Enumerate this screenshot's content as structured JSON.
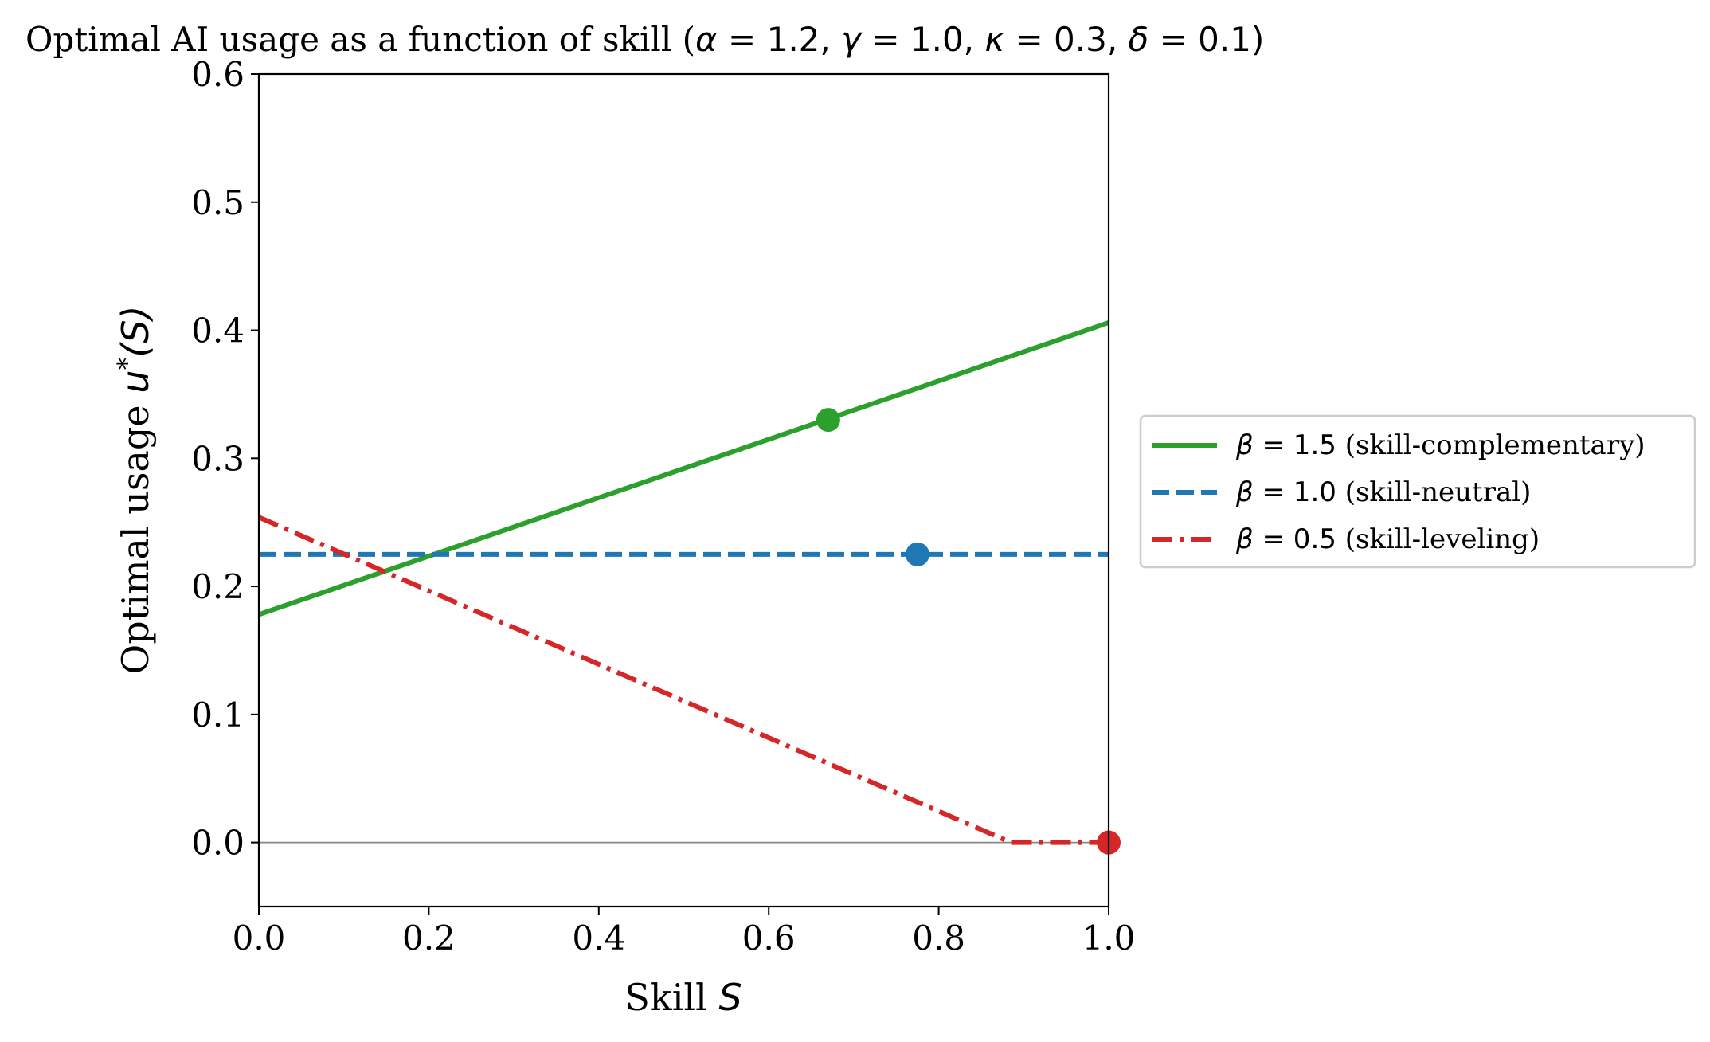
{
  "chart_data": {
    "type": "line",
    "title": {
      "prefix": "Optimal AI usage as a function of skill (",
      "params": [
        {
          "symbol": "α",
          "value": "1.2"
        },
        {
          "symbol": "γ",
          "value": "1.0"
        },
        {
          "symbol": "κ",
          "value": "0.3"
        },
        {
          "symbol": "δ",
          "value": "0.1"
        }
      ],
      "suffix": ")"
    },
    "xlabel": {
      "text": "Skill ",
      "symbol": "S"
    },
    "ylabel": {
      "text": "Optimal usage ",
      "symbol": "u",
      "sup": "*",
      "arg": "(S)"
    },
    "xlim": [
      0.0,
      1.0
    ],
    "ylim": [
      -0.05,
      0.6
    ],
    "xticks": [
      "0.0",
      "0.2",
      "0.4",
      "0.6",
      "0.8",
      "1.0"
    ],
    "yticks": [
      "0.0",
      "0.1",
      "0.2",
      "0.3",
      "0.4",
      "0.5",
      "0.6"
    ],
    "zero_line": true,
    "grid": false,
    "legend_position": "right, outside plot",
    "series": [
      {
        "name": {
          "symbol": "β",
          "value": "1.5",
          "desc": "(skill-complementary)"
        },
        "color": "#2ca02c",
        "style": "solid",
        "x": [
          0.0,
          1.0
        ],
        "y": [
          0.178,
          0.406
        ],
        "marker": {
          "x": 0.67,
          "y": 0.33
        }
      },
      {
        "name": {
          "symbol": "β",
          "value": "1.0",
          "desc": "(skill-neutral)"
        },
        "color": "#1f77b4",
        "style": "dashed",
        "x": [
          0.0,
          1.0
        ],
        "y": [
          0.225,
          0.225
        ],
        "marker": {
          "x": 0.775,
          "y": 0.225
        }
      },
      {
        "name": {
          "symbol": "β",
          "value": "0.5",
          "desc": "(skill-leveling)"
        },
        "color": "#d62728",
        "style": "dashdot",
        "x": [
          0.0,
          0.885,
          1.0
        ],
        "y": [
          0.254,
          0.0,
          0.0
        ],
        "marker": {
          "x": 1.0,
          "y": 0.0
        }
      }
    ]
  }
}
